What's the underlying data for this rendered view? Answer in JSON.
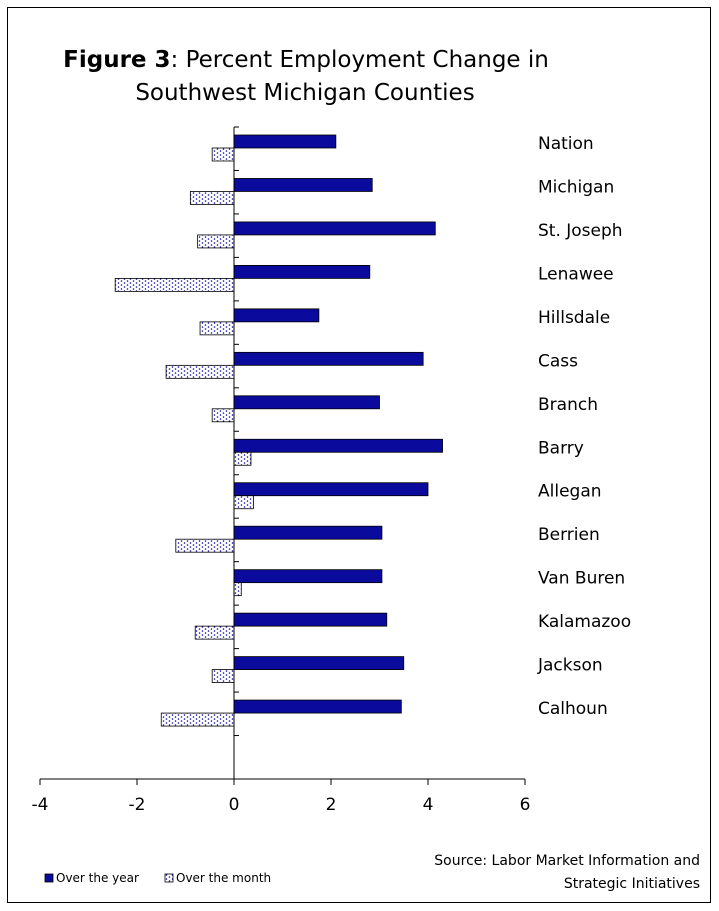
{
  "chart_data": {
    "type": "bar",
    "orientation": "horizontal",
    "title_bold": "Figure 3",
    "title_rest": ": Percent Employment Change in",
    "title_line2": "Southwest Michigan Counties",
    "categories": [
      "Nation",
      "Michigan",
      "St. Joseph",
      "Lenawee",
      "Hillsdale",
      "Cass",
      "Branch",
      "Barry",
      "Allegan",
      "Berrien",
      "Van Buren",
      "Kalamazoo",
      "Jackson",
      "Calhoun"
    ],
    "series": [
      {
        "name": "Over the year",
        "color": "#0a0a9c",
        "values": [
          2.1,
          2.85,
          4.15,
          2.8,
          1.75,
          3.9,
          3.0,
          4.3,
          4.0,
          3.05,
          3.05,
          3.15,
          3.5,
          3.45
        ]
      },
      {
        "name": "Over the month",
        "color": "#ffffff",
        "pattern": "dots",
        "values": [
          -0.45,
          -0.9,
          -0.75,
          -2.45,
          -0.7,
          -1.4,
          -0.45,
          0.35,
          0.4,
          -1.2,
          0.15,
          -0.8,
          -0.45,
          -1.5
        ]
      }
    ],
    "xlim": [
      -4,
      6
    ],
    "xticks": [
      "-4",
      "-2",
      "0",
      "2",
      "4",
      "6"
    ],
    "xtick_values": [
      -4,
      -2,
      0,
      2,
      4,
      6
    ],
    "xlabel": "",
    "ylabel": "",
    "grid": false,
    "legend_position": "bottom-left",
    "source_line1": "Source: Labor Market Information and",
    "source_line2": "Strategic Initiatives"
  }
}
